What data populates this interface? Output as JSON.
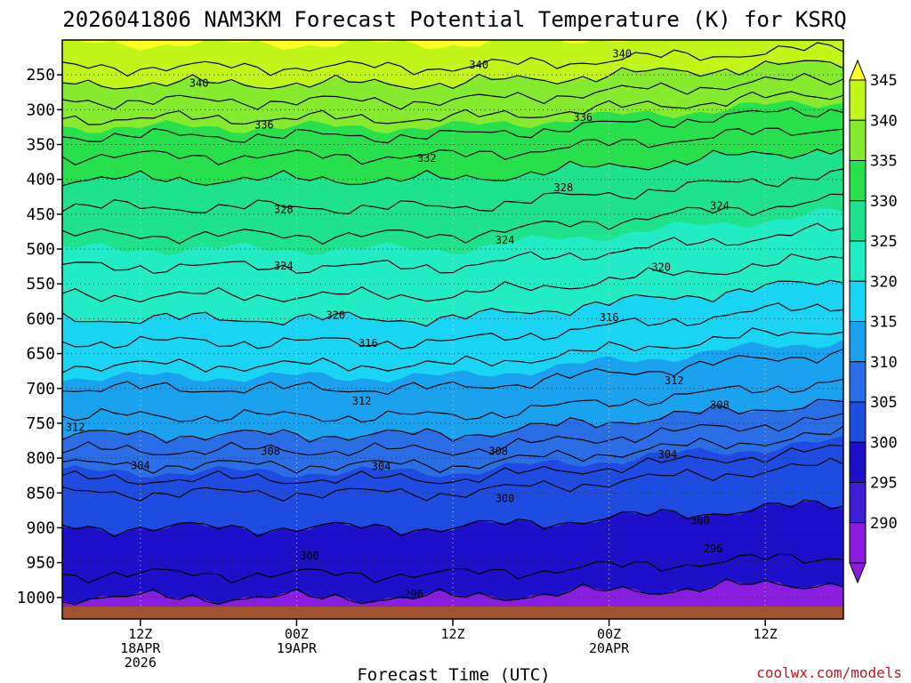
{
  "chart_data": {
    "type": "heatmap",
    "title": "2026041806 NAM3KM Forecast Potential Temperature (K) for KSRQ",
    "xlabel": "Forecast Time (UTC)",
    "ylabel": "",
    "credit": "coolwx.com/models",
    "y_ticks": [
      250,
      300,
      350,
      400,
      450,
      500,
      550,
      600,
      650,
      700,
      750,
      800,
      850,
      900,
      950,
      1000
    ],
    "y_range": [
      200,
      1013
    ],
    "x_ticks": [
      {
        "hour": 6,
        "lines": [
          "12Z",
          "18APR",
          "2026"
        ]
      },
      {
        "hour": 18,
        "lines": [
          "00Z",
          "19APR"
        ]
      },
      {
        "hour": 30,
        "lines": [
          "12Z"
        ]
      },
      {
        "hour": 42,
        "lines": [
          "00Z",
          "20APR"
        ]
      },
      {
        "hour": 54,
        "lines": [
          "12Z"
        ]
      }
    ],
    "x_range": [
      0,
      60
    ],
    "colorbar": {
      "levels": [
        290,
        295,
        300,
        305,
        310,
        315,
        320,
        325,
        330,
        335,
        340,
        345
      ],
      "colors": [
        "#8a1ee0",
        "#3f1fd6",
        "#1d10c8",
        "#1f4ce0",
        "#2a6ee6",
        "#1aa2ef",
        "#19d4f2",
        "#22ecc6",
        "#1ee28c",
        "#28e04c",
        "#86ea2e",
        "#c2f51a",
        "#ffff28"
      ]
    },
    "profile": [
      {
        "p": 200,
        "theta": 345.5
      },
      {
        "p": 250,
        "theta": 341
      },
      {
        "p": 300,
        "theta": 337
      },
      {
        "p": 350,
        "theta": 333
      },
      {
        "p": 400,
        "theta": 330
      },
      {
        "p": 450,
        "theta": 327.5
      },
      {
        "p": 500,
        "theta": 325
      },
      {
        "p": 550,
        "theta": 323
      },
      {
        "p": 600,
        "theta": 320
      },
      {
        "p": 650,
        "theta": 317
      },
      {
        "p": 700,
        "theta": 314
      },
      {
        "p": 750,
        "theta": 311.5
      },
      {
        "p": 800,
        "theta": 307
      },
      {
        "p": 850,
        "theta": 302
      },
      {
        "p": 900,
        "theta": 300
      },
      {
        "p": 950,
        "theta": 298.5
      },
      {
        "p": 1000,
        "theta": 297
      }
    ],
    "contour_levels": [
      296,
      298,
      300,
      302,
      304,
      306,
      308,
      310,
      312,
      314,
      316,
      318,
      320,
      322,
      324,
      326,
      328,
      330,
      332,
      334,
      336,
      338,
      340,
      342
    ],
    "contour_labels": [
      {
        "text": "340",
        "hour": 10.5,
        "p": 262
      },
      {
        "text": "340",
        "hour": 32,
        "p": 236
      },
      {
        "text": "340",
        "hour": 43,
        "p": 220
      },
      {
        "text": "336",
        "hour": 15.5,
        "p": 322
      },
      {
        "text": "336",
        "hour": 40,
        "p": 311
      },
      {
        "text": "332",
        "hour": 28,
        "p": 370
      },
      {
        "text": "328",
        "hour": 17,
        "p": 443
      },
      {
        "text": "328",
        "hour": 38.5,
        "p": 412
      },
      {
        "text": "324",
        "hour": 17,
        "p": 524
      },
      {
        "text": "324",
        "hour": 34,
        "p": 487
      },
      {
        "text": "324",
        "hour": 50.5,
        "p": 438
      },
      {
        "text": "320",
        "hour": 21,
        "p": 595
      },
      {
        "text": "320",
        "hour": 46,
        "p": 526
      },
      {
        "text": "316",
        "hour": 23.5,
        "p": 635
      },
      {
        "text": "316",
        "hour": 42,
        "p": 598
      },
      {
        "text": "312",
        "hour": 23,
        "p": 718
      },
      {
        "text": "312",
        "hour": 47,
        "p": 689
      },
      {
        "text": "312",
        "hour": 1,
        "p": 756
      },
      {
        "text": "308",
        "hour": 16,
        "p": 790
      },
      {
        "text": "308",
        "hour": 33.5,
        "p": 790
      },
      {
        "text": "308",
        "hour": 50.5,
        "p": 724
      },
      {
        "text": "304",
        "hour": 6,
        "p": 811
      },
      {
        "text": "304",
        "hour": 24.5,
        "p": 812
      },
      {
        "text": "304",
        "hour": 46.5,
        "p": 795
      },
      {
        "text": "300",
        "hour": 34,
        "p": 858
      },
      {
        "text": "300",
        "hour": 49,
        "p": 890
      },
      {
        "text": "300",
        "hour": 19,
        "p": 940
      },
      {
        "text": "296",
        "hour": 50,
        "p": 930
      },
      {
        "text": "296",
        "hour": 27,
        "p": 995
      }
    ]
  }
}
